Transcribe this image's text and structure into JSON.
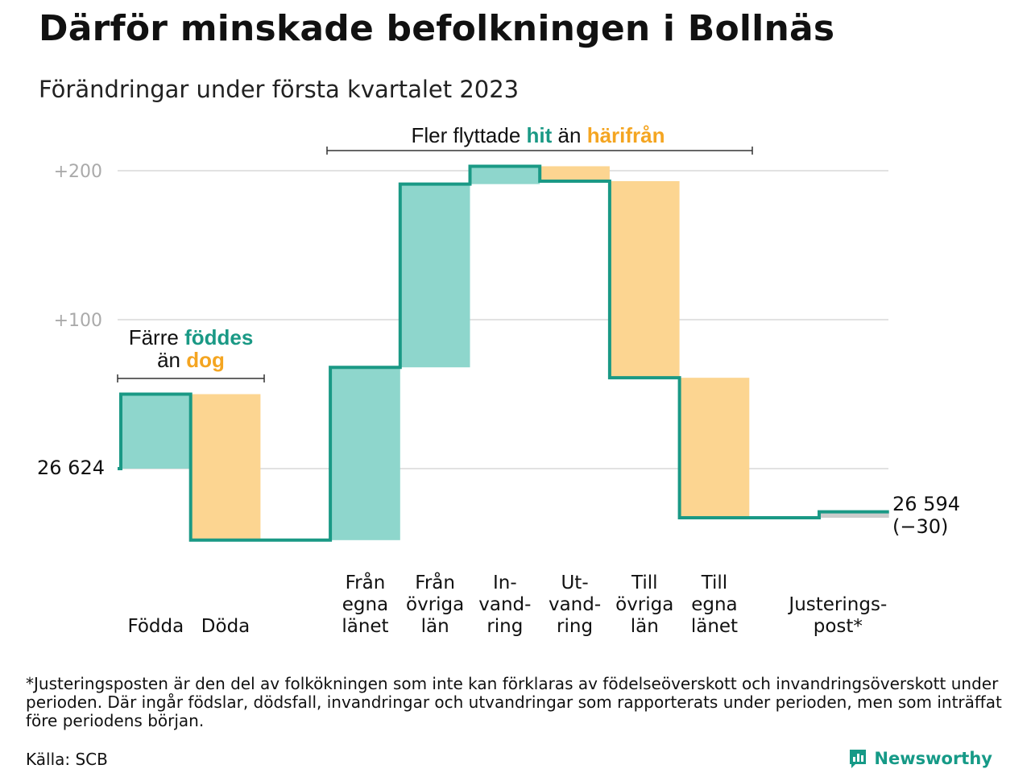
{
  "title": "Därför minskade befolkningen i Bollnäs",
  "subtitle": "Förändringar under första kvartalet 2023",
  "colors": {
    "increase": "#8ed6cc",
    "decrease": "#fcd591",
    "adjustment": "#cccccc",
    "line": "#1a9985",
    "teal_text": "#1a9985",
    "orange_text": "#f4a521",
    "grid": "#e2e2e2"
  },
  "chart_data": {
    "type": "waterfall",
    "start_value": 26624,
    "start_label": "26 624",
    "end_label": "26 594",
    "end_change_label": "(−30)",
    "yticks": [
      {
        "value": 100,
        "label": "+100"
      },
      {
        "value": 200,
        "label": "+200"
      }
    ],
    "ylim": [
      -48,
      205
    ],
    "categories": [
      {
        "label": "Födda",
        "value": 50,
        "kind": "increase"
      },
      {
        "label": "Döda",
        "value": -98,
        "kind": "decrease"
      },
      {
        "label": "",
        "value": 0,
        "kind": "gap"
      },
      {
        "label": "Från egna länet",
        "value": 116,
        "kind": "increase"
      },
      {
        "label": "Från övriga län",
        "value": 123,
        "kind": "increase"
      },
      {
        "label": "In-vand-ring",
        "value": 12,
        "kind": "increase"
      },
      {
        "label": "Ut-vand-ring",
        "value": -10,
        "kind": "decrease"
      },
      {
        "label": "Till övriga län",
        "value": -132,
        "kind": "decrease"
      },
      {
        "label": "Till egna länet",
        "value": -94,
        "kind": "decrease"
      },
      {
        "label": "",
        "value": 0,
        "kind": "gap"
      },
      {
        "label": "Justerings-post*",
        "value": 4,
        "kind": "adjustment"
      }
    ],
    "annotations": {
      "birth_prefix": "Färre",
      "birth_teal": "föddes",
      "birth_mid": "än",
      "birth_orange": "dog",
      "migration_prefix": "Fler flyttade",
      "migration_teal": "hit",
      "migration_mid": "än",
      "migration_orange": "härifrån"
    },
    "grid": true
  },
  "footnote": "*Justeringsposten är den del av folkökningen som inte kan förklaras av födelseöverskott och invandringsöverskott under perioden. Där ingår födslar, dödsfall, invandringar och utvandringar som rapporterats under perioden, men som inträffat före periodens början.",
  "source": "Källa: SCB",
  "brand": "Newsworthy"
}
